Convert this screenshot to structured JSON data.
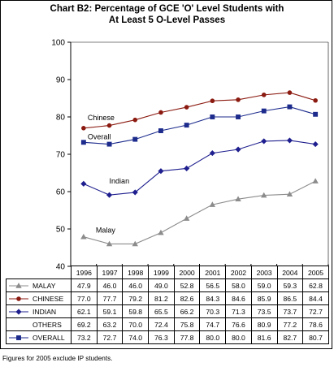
{
  "title": {
    "line1": "Chart B2:  Percentage of GCE 'O' Level Students with",
    "line2": "At Least 5 O-Level Passes"
  },
  "footnote": "Figures for 2005 exclude IP students.",
  "colors": {
    "malay": "#8c8c8c",
    "chinese": "#8b1a10",
    "indian": "#1f1f8f",
    "overall": "#1c2b8c",
    "others": "#000000",
    "grid": "#000000",
    "marker_fill": "#ffffff"
  },
  "chart_data": {
    "type": "line",
    "x": [
      "1996",
      "1997",
      "1998",
      "1999",
      "2000",
      "2001",
      "2002",
      "2003",
      "2004",
      "2005"
    ],
    "ylim": [
      40,
      100
    ],
    "yticks": [
      "40",
      "50",
      "60",
      "70",
      "80",
      "90",
      "100"
    ],
    "grid": false,
    "series": [
      {
        "key": "malay",
        "name": "MALAY",
        "label": "Malay",
        "marker": "triangle",
        "values": [
          47.9,
          46.0,
          46.0,
          49.0,
          52.8,
          56.5,
          58.0,
          59.0,
          59.3,
          62.8
        ],
        "values_text": [
          "47.9",
          "46.0",
          "46.0",
          "49.0",
          "52.8",
          "56.5",
          "58.0",
          "59.0",
          "59.3",
          "62.8"
        ]
      },
      {
        "key": "chinese",
        "name": "CHINESE",
        "label": "Chinese",
        "marker": "circle",
        "values": [
          77.0,
          77.7,
          79.2,
          81.2,
          82.6,
          84.3,
          84.6,
          85.9,
          86.5,
          84.4
        ],
        "values_text": [
          "77.0",
          "77.7",
          "79.2",
          "81.2",
          "82.6",
          "84.3",
          "84.6",
          "85.9",
          "86.5",
          "84.4"
        ]
      },
      {
        "key": "indian",
        "name": "INDIAN",
        "label": "Indian",
        "marker": "diamond",
        "values": [
          62.1,
          59.1,
          59.8,
          65.5,
          66.2,
          70.3,
          71.3,
          73.5,
          73.7,
          72.7
        ],
        "values_text": [
          "62.1",
          "59.1",
          "59.8",
          "65.5",
          "66.2",
          "70.3",
          "71.3",
          "73.5",
          "73.7",
          "72.7"
        ]
      },
      {
        "key": "others",
        "name": "OTHERS",
        "label": "",
        "marker": "none",
        "plotted": false,
        "values": [
          69.2,
          63.2,
          70.0,
          72.4,
          75.8,
          74.7,
          76.6,
          80.9,
          77.2,
          78.6
        ],
        "values_text": [
          "69.2",
          "63.2",
          "70.0",
          "72.4",
          "75.8",
          "74.7",
          "76.6",
          "80.9",
          "77.2",
          "78.6"
        ]
      },
      {
        "key": "overall",
        "name": "OVERALL",
        "label": "Overall",
        "marker": "square",
        "values": [
          73.2,
          72.7,
          74.0,
          76.3,
          77.8,
          80.0,
          80.0,
          81.6,
          82.7,
          80.7
        ],
        "values_text": [
          "73.2",
          "72.7",
          "74.0",
          "76.3",
          "77.8",
          "80.0",
          "80.0",
          "81.6",
          "82.7",
          "80.7"
        ]
      }
    ]
  }
}
